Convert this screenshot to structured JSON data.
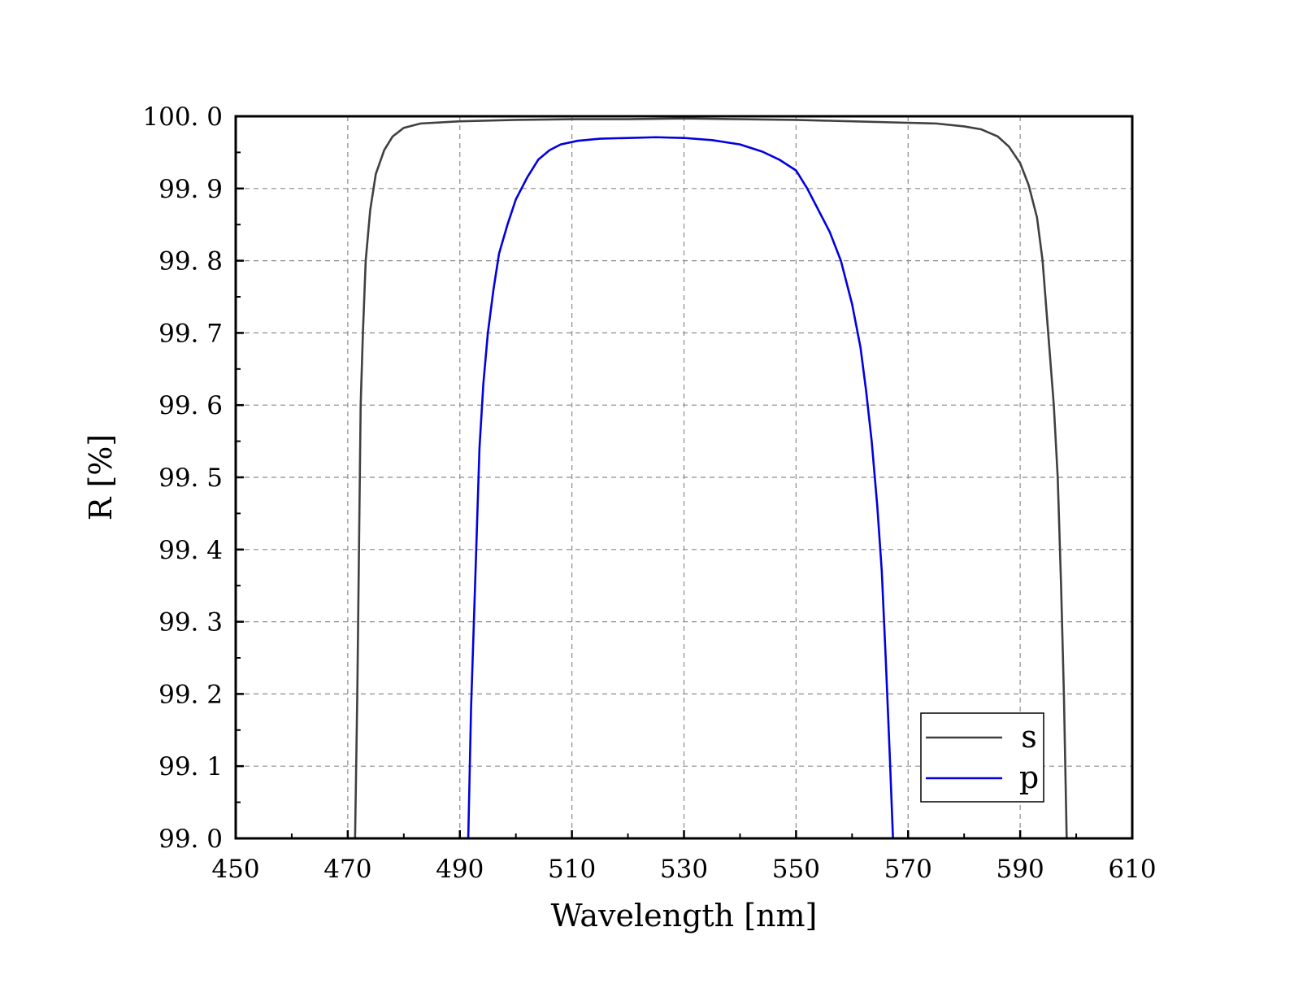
{
  "chart_data": {
    "type": "line",
    "title": "",
    "xlabel": "Wavelength [nm]",
    "ylabel": "R [%]",
    "xlim": [
      450,
      610
    ],
    "ylim": [
      99.0,
      100.0
    ],
    "x_ticks": [
      450,
      470,
      490,
      510,
      530,
      550,
      570,
      590,
      610
    ],
    "x_tick_labels": [
      "450",
      "470",
      "490",
      "510",
      "530",
      "550",
      "570",
      "590",
      "610"
    ],
    "y_ticks": [
      99.0,
      99.1,
      99.2,
      99.3,
      99.4,
      99.5,
      99.6,
      99.7,
      99.8,
      99.9,
      100.0
    ],
    "y_tick_labels": [
      "99. 0",
      "99. 1",
      "99. 2",
      "99. 3",
      "99. 4",
      "99. 5",
      "99. 6",
      "99. 7",
      "99. 8",
      "99. 9",
      "100. 0"
    ],
    "grid": true,
    "legend_position": "bottom-right",
    "series": [
      {
        "name": "s",
        "color": "#404040",
        "points": [
          [
            471.3,
            99.0
          ],
          [
            471.7,
            99.2
          ],
          [
            472.0,
            99.4
          ],
          [
            472.3,
            99.6
          ],
          [
            472.7,
            99.7
          ],
          [
            473.2,
            99.8
          ],
          [
            474.0,
            99.87
          ],
          [
            475.0,
            99.92
          ],
          [
            476.5,
            99.953
          ],
          [
            478.0,
            99.972
          ],
          [
            480.0,
            99.984
          ],
          [
            483.0,
            99.99
          ],
          [
            490.0,
            99.993
          ],
          [
            500.0,
            99.995
          ],
          [
            510.0,
            99.996
          ],
          [
            520.0,
            99.996
          ],
          [
            530.0,
            99.997
          ],
          [
            540.0,
            99.996
          ],
          [
            550.0,
            99.995
          ],
          [
            560.0,
            99.993
          ],
          [
            570.0,
            99.991
          ],
          [
            575.0,
            99.99
          ],
          [
            580.0,
            99.986
          ],
          [
            583.0,
            99.982
          ],
          [
            586.0,
            99.972
          ],
          [
            588.0,
            99.958
          ],
          [
            590.0,
            99.935
          ],
          [
            591.5,
            99.905
          ],
          [
            593.0,
            99.86
          ],
          [
            594.0,
            99.8
          ],
          [
            595.0,
            99.7
          ],
          [
            596.0,
            99.6
          ],
          [
            596.7,
            99.5
          ],
          [
            597.3,
            99.35
          ],
          [
            597.8,
            99.2
          ],
          [
            598.3,
            99.0
          ]
        ]
      },
      {
        "name": "p",
        "color": "#0000e0",
        "points": [
          [
            491.5,
            99.0
          ],
          [
            492.0,
            99.18
          ],
          [
            492.8,
            99.37
          ],
          [
            493.5,
            99.54
          ],
          [
            494.2,
            99.63
          ],
          [
            495.0,
            99.7
          ],
          [
            496.0,
            99.76
          ],
          [
            497.0,
            99.81
          ],
          [
            498.5,
            99.85
          ],
          [
            500.0,
            99.885
          ],
          [
            502.0,
            99.915
          ],
          [
            504.0,
            99.94
          ],
          [
            506.0,
            99.953
          ],
          [
            508.0,
            99.961
          ],
          [
            511.0,
            99.966
          ],
          [
            515.0,
            99.969
          ],
          [
            520.0,
            99.97
          ],
          [
            525.0,
            99.971
          ],
          [
            530.0,
            99.97
          ],
          [
            535.0,
            99.967
          ],
          [
            540.0,
            99.961
          ],
          [
            544.0,
            99.951
          ],
          [
            547.0,
            99.94
          ],
          [
            550.0,
            99.925
          ],
          [
            552.0,
            99.9
          ],
          [
            554.0,
            99.87
          ],
          [
            556.0,
            99.84
          ],
          [
            558.0,
            99.8
          ],
          [
            560.0,
            99.74
          ],
          [
            561.5,
            99.68
          ],
          [
            562.5,
            99.62
          ],
          [
            563.5,
            99.55
          ],
          [
            564.5,
            99.46
          ],
          [
            565.3,
            99.37
          ],
          [
            566.0,
            99.25
          ],
          [
            566.7,
            99.12
          ],
          [
            567.3,
            99.0
          ]
        ]
      }
    ]
  }
}
